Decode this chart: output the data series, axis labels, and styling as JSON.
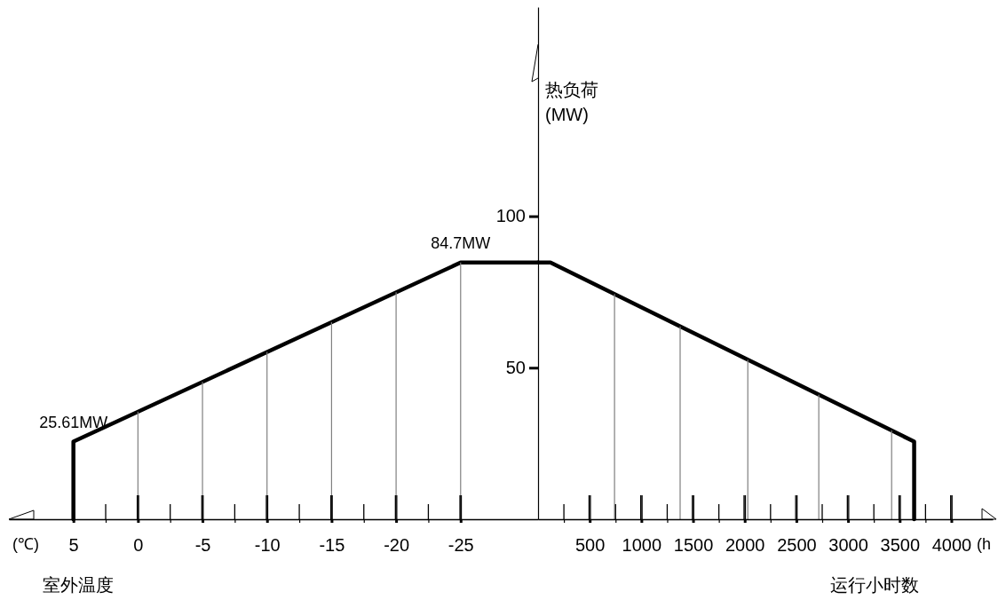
{
  "chart_data": [
    {
      "type": "line",
      "xlabel": "室外温度",
      "ylabel": "热负荷 (MW)",
      "xlim": [
        10,
        -31
      ],
      "ylim": [
        0,
        169
      ],
      "xticks": [
        5,
        {
          "value": 2.5,
          "label": null
        },
        0,
        {
          "value": -2.5,
          "label": null
        },
        -5,
        {
          "value": -7.5,
          "label": null
        },
        -10,
        {
          "value": -12.5,
          "label": null
        },
        -15,
        {
          "value": -17.5,
          "label": null
        },
        -20,
        {
          "value": -22.5,
          "label": null
        },
        -25
      ],
      "yticks": [
        50,
        100
      ],
      "series": [
        {
          "color": "#000000",
          "x": [
            5,
            5,
            -25,
            -31
          ],
          "values": [
            0,
            25.61,
            84.7,
            84.7
          ]
        },
        {
          "type": "bar",
          "color": "#808080",
          "x": [
            0,
            -5,
            -10,
            -15,
            -20,
            -25
          ],
          "values": [
            35.5,
            45.3,
            55.2,
            65.0,
            74.9,
            84.7
          ]
        }
      ],
      "annotations": [
        {
          "text": "25.61MW",
          "x": 5,
          "y": 25.61
        },
        {
          "text": "84.7MW",
          "x": -25,
          "y": 84.7
        },
        "(℃)"
      ]
    },
    {
      "type": "line",
      "xlabel": "运行小时数",
      "xlim": [
        0,
        4400
      ],
      "ylim": [
        0,
        169
      ],
      "tick_labels": "x",
      "xticks": [
        {
          "value": 250,
          "label": null
        },
        500,
        {
          "value": 750,
          "label": null
        },
        1000,
        {
          "value": 1250,
          "label": null
        },
        1500,
        {
          "value": 1750,
          "label": null
        },
        2000,
        {
          "value": 2250,
          "label": null
        },
        2500,
        {
          "value": 2750,
          "label": null
        },
        3000,
        {
          "value": 3250,
          "label": null
        },
        3500,
        {
          "value": 3750,
          "label": null
        },
        4000
      ],
      "series": [
        {
          "color": "#000000",
          "x": [
            0,
            120,
            3640,
            3640
          ],
          "values": [
            84.7,
            84.7,
            25.61,
            0
          ]
        },
        {
          "type": "bar",
          "color": "#808080",
          "x": [
            740,
            1375,
            2030,
            2717,
            3422
          ],
          "values": [
            74.3,
            63.6,
            52.6,
            41.1,
            29.3
          ]
        }
      ],
      "annotations": [
        "(h"
      ]
    }
  ]
}
